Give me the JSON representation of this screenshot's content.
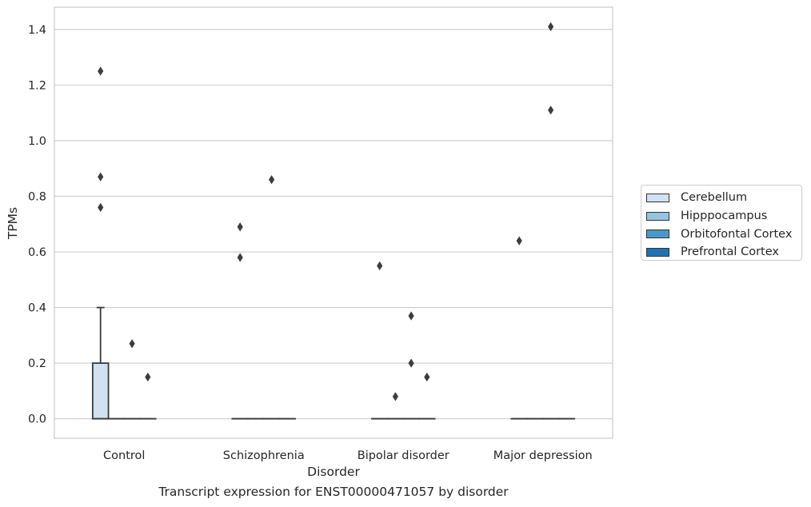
{
  "chart_data": {
    "type": "box",
    "xlabel": "Disorder",
    "ylabel": "TPMs",
    "caption": "Transcript expression for ENST00000471057 by disorder",
    "ylim": [
      -0.07,
      1.48
    ],
    "yticks": [
      0.0,
      0.2,
      0.4,
      0.6,
      0.8,
      1.0,
      1.2,
      1.4
    ],
    "ytick_labels": [
      "0.0",
      "0.2",
      "0.4",
      "0.6",
      "0.8",
      "1.0",
      "1.2",
      "1.4"
    ],
    "categories": [
      "Control",
      "Schizophrenia",
      "Bipolar disorder",
      "Major depression"
    ],
    "grid": "horizontal",
    "legend_position": "right",
    "series": [
      {
        "name": "Cerebellum",
        "color": "#d0e1f2",
        "boxes": [
          {
            "q1": 0.0,
            "median": 0.0,
            "q3": 0.2,
            "whisker_low": 0.0,
            "whisker_high": 0.4,
            "outliers": [
              0.76,
              0.87,
              1.25
            ]
          },
          {
            "q1": 0.0,
            "median": 0.0,
            "q3": 0.0,
            "whisker_low": 0.0,
            "whisker_high": 0.0,
            "outliers": [
              0.58,
              0.69
            ]
          },
          {
            "q1": 0.0,
            "median": 0.0,
            "q3": 0.0,
            "whisker_low": 0.0,
            "whisker_high": 0.0,
            "outliers": [
              0.55
            ]
          },
          {
            "q1": 0.0,
            "median": 0.0,
            "q3": 0.0,
            "whisker_low": 0.0,
            "whisker_high": 0.0,
            "outliers": [
              0.64
            ]
          }
        ]
      },
      {
        "name": "Hipppocampus",
        "color": "#94c4df",
        "boxes": [
          {
            "q1": 0.0,
            "median": 0.0,
            "q3": 0.0,
            "whisker_low": 0.0,
            "whisker_high": 0.0,
            "outliers": []
          },
          {
            "q1": 0.0,
            "median": 0.0,
            "q3": 0.0,
            "whisker_low": 0.0,
            "whisker_high": 0.0,
            "outliers": []
          },
          {
            "q1": 0.0,
            "median": 0.0,
            "q3": 0.0,
            "whisker_low": 0.0,
            "whisker_high": 0.0,
            "outliers": [
              0.08
            ]
          },
          {
            "q1": 0.0,
            "median": 0.0,
            "q3": 0.0,
            "whisker_low": 0.0,
            "whisker_high": 0.0,
            "outliers": []
          }
        ]
      },
      {
        "name": "Orbitofontal Cortex",
        "color": "#4a98c9",
        "boxes": [
          {
            "q1": 0.0,
            "median": 0.0,
            "q3": 0.0,
            "whisker_low": 0.0,
            "whisker_high": 0.0,
            "outliers": [
              0.27
            ]
          },
          {
            "q1": 0.0,
            "median": 0.0,
            "q3": 0.0,
            "whisker_low": 0.0,
            "whisker_high": 0.0,
            "outliers": [
              0.86
            ]
          },
          {
            "q1": 0.0,
            "median": 0.0,
            "q3": 0.0,
            "whisker_low": 0.0,
            "whisker_high": 0.0,
            "outliers": [
              0.2,
              0.37
            ]
          },
          {
            "q1": 0.0,
            "median": 0.0,
            "q3": 0.0,
            "whisker_low": 0.0,
            "whisker_high": 0.0,
            "outliers": [
              1.11,
              1.41
            ]
          }
        ]
      },
      {
        "name": "Prefrontal Cortex",
        "color": "#2171b5",
        "boxes": [
          {
            "q1": 0.0,
            "median": 0.0,
            "q3": 0.0,
            "whisker_low": 0.0,
            "whisker_high": 0.0,
            "outliers": [
              0.15
            ]
          },
          {
            "q1": 0.0,
            "median": 0.0,
            "q3": 0.0,
            "whisker_low": 0.0,
            "whisker_high": 0.0,
            "outliers": []
          },
          {
            "q1": 0.0,
            "median": 0.0,
            "q3": 0.0,
            "whisker_low": 0.0,
            "whisker_high": 0.0,
            "outliers": [
              0.15
            ]
          },
          {
            "q1": 0.0,
            "median": 0.0,
            "q3": 0.0,
            "whisker_low": 0.0,
            "whisker_high": 0.0,
            "outliers": []
          }
        ]
      }
    ]
  }
}
